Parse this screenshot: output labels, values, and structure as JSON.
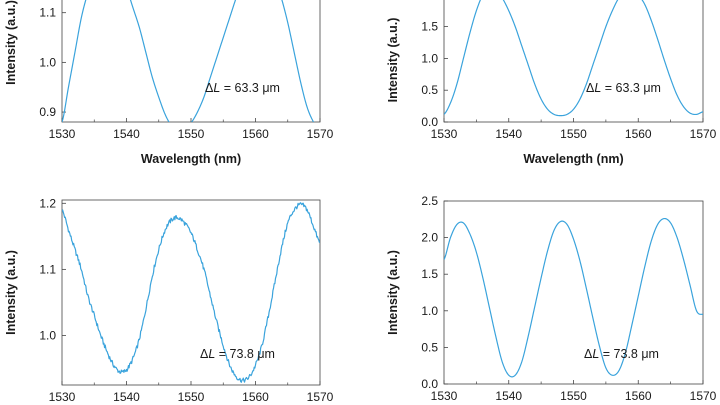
{
  "chart_data": [
    {
      "type": "line",
      "xlabel": "Wavelength (nm)",
      "ylabel": "Intensity (a.u.)",
      "xlim": [
        1530,
        1570
      ],
      "ylim": [
        0.88,
        1.2
      ],
      "x_ticks": [
        1530,
        1540,
        1550,
        1560,
        1570
      ],
      "y_ticks": [
        0.9,
        1.0,
        1.1
      ],
      "annotation": "ΔL = 63.3 μm",
      "noise": false,
      "series": [
        {
          "color": "#3aa3dc",
          "x": [
            1530,
            1531,
            1532,
            1533,
            1534,
            1535,
            1536,
            1537,
            1538,
            1539,
            1540,
            1541,
            1542,
            1543,
            1544,
            1545,
            1546,
            1547,
            1548,
            1549,
            1550,
            1551,
            1552,
            1553,
            1554,
            1555,
            1556,
            1557,
            1558,
            1559,
            1560,
            1561,
            1562,
            1563,
            1564,
            1565,
            1566,
            1567,
            1568,
            1569,
            1570
          ],
          "y": [
            0.88,
            0.95,
            1.02,
            1.09,
            1.14,
            1.18,
            1.205,
            1.21,
            1.2,
            1.18,
            1.15,
            1.11,
            1.07,
            1.02,
            0.97,
            0.93,
            0.895,
            0.872,
            0.864,
            0.866,
            0.878,
            0.9,
            0.93,
            0.97,
            1.01,
            1.05,
            1.09,
            1.13,
            1.17,
            1.2,
            1.215,
            1.21,
            1.2,
            1.17,
            1.13,
            1.08,
            1.02,
            0.96,
            0.91,
            0.88,
            0.865
          ]
        }
      ]
    },
    {
      "type": "line",
      "xlabel": "Wavelength (nm)",
      "ylabel": "Intensity (a.u.)",
      "xlim": [
        1530,
        1570
      ],
      "ylim": [
        0,
        1.95
      ],
      "x_ticks": [
        1530,
        1540,
        1550,
        1560,
        1570
      ],
      "y_ticks": [
        0.0,
        0.5,
        1.0,
        1.5
      ],
      "annotation": "ΔL = 63.3 μm",
      "noise": false,
      "series": [
        {
          "color": "#3aa3dc",
          "x": [
            1530,
            1531,
            1532,
            1533,
            1534,
            1535,
            1536,
            1537,
            1538,
            1539,
            1540,
            1541,
            1542,
            1543,
            1544,
            1545,
            1546,
            1547,
            1548,
            1549,
            1550,
            1551,
            1552,
            1553,
            1554,
            1555,
            1556,
            1557,
            1558,
            1559,
            1560,
            1561,
            1562,
            1563,
            1564,
            1565,
            1566,
            1567,
            1568,
            1569,
            1570
          ],
          "y": [
            0.12,
            0.3,
            0.6,
            1.0,
            1.4,
            1.75,
            2.0,
            2.1,
            2.08,
            1.95,
            1.75,
            1.5,
            1.2,
            0.9,
            0.6,
            0.36,
            0.2,
            0.12,
            0.1,
            0.12,
            0.2,
            0.36,
            0.6,
            0.9,
            1.2,
            1.5,
            1.75,
            1.95,
            2.05,
            2.08,
            2.0,
            1.85,
            1.6,
            1.3,
            0.98,
            0.68,
            0.42,
            0.24,
            0.14,
            0.12,
            0.16
          ]
        }
      ]
    },
    {
      "type": "line",
      "xlabel": "",
      "ylabel": "Intensity (a.u.)",
      "xlim": [
        1530,
        1570
      ],
      "ylim": [
        0.925,
        1.205
      ],
      "x_ticks": [
        1530,
        1540,
        1550,
        1560,
        1570
      ],
      "y_ticks": [
        1.0,
        1.1,
        1.2
      ],
      "annotation": "ΔL = 73.8 μm",
      "noise": true,
      "series": [
        {
          "color": "#3aa3dc",
          "x": [
            1530,
            1531,
            1532,
            1533,
            1534,
            1535,
            1536,
            1537,
            1538,
            1539,
            1540,
            1541,
            1542,
            1543,
            1544,
            1545,
            1546,
            1547,
            1548,
            1549,
            1550,
            1551,
            1552,
            1553,
            1554,
            1555,
            1556,
            1557,
            1558,
            1559,
            1560,
            1561,
            1562,
            1563,
            1564,
            1565,
            1566,
            1567,
            1568,
            1569,
            1570
          ],
          "y": [
            1.19,
            1.16,
            1.13,
            1.1,
            1.06,
            1.03,
            1.0,
            0.975,
            0.955,
            0.945,
            0.948,
            0.965,
            0.995,
            1.04,
            1.09,
            1.13,
            1.16,
            1.175,
            1.178,
            1.17,
            1.155,
            1.13,
            1.1,
            1.06,
            1.02,
            0.985,
            0.955,
            0.938,
            0.932,
            0.937,
            0.955,
            0.985,
            1.03,
            1.08,
            1.13,
            1.17,
            1.19,
            1.198,
            1.19,
            1.165,
            1.14
          ]
        }
      ]
    },
    {
      "type": "line",
      "xlabel": "",
      "ylabel": "Intensity (a.u.)",
      "xlim": [
        1530,
        1570
      ],
      "ylim": [
        0,
        2.5
      ],
      "x_ticks": [
        1530,
        1540,
        1550,
        1560,
        1570
      ],
      "y_ticks": [
        0.0,
        0.5,
        1.0,
        1.5,
        2.0,
        2.5
      ],
      "annotation": "ΔL = 73.8 μm",
      "noise": false,
      "series": [
        {
          "color": "#3aa3dc",
          "x": [
            1530,
            1531,
            1532,
            1533,
            1534,
            1535,
            1536,
            1537,
            1538,
            1539,
            1540,
            1541,
            1542,
            1543,
            1544,
            1545,
            1546,
            1547,
            1548,
            1549,
            1550,
            1551,
            1552,
            1553,
            1554,
            1555,
            1556,
            1557,
            1558,
            1559,
            1560,
            1561,
            1562,
            1563,
            1564,
            1565,
            1566,
            1567,
            1568,
            1569,
            1570
          ],
          "y": [
            1.7,
            2.0,
            2.18,
            2.2,
            2.05,
            1.8,
            1.45,
            1.05,
            0.65,
            0.3,
            0.12,
            0.12,
            0.3,
            0.65,
            1.05,
            1.45,
            1.82,
            2.1,
            2.22,
            2.18,
            1.98,
            1.68,
            1.3,
            0.9,
            0.52,
            0.22,
            0.12,
            0.18,
            0.42,
            0.8,
            1.2,
            1.6,
            1.95,
            2.18,
            2.26,
            2.2,
            2.0,
            1.7,
            1.35,
            1.0,
            0.95
          ]
        }
      ]
    }
  ]
}
